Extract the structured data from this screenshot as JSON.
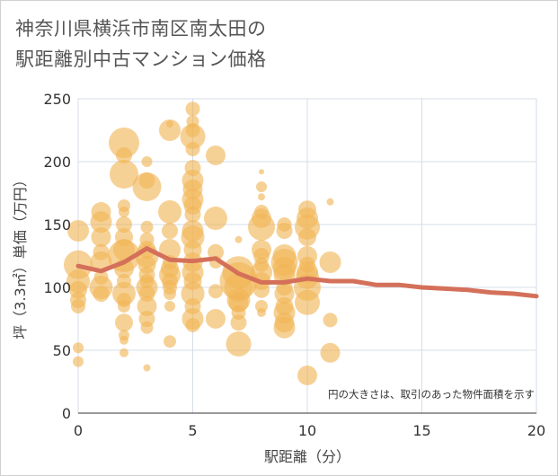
{
  "title_line1": "神奈川県横浜市南区南太田の",
  "title_line2": "駅距離別中古マンション価格",
  "note": "円の大きさは、取引のあった物件面積を示す",
  "colors": {
    "bubble": "#f0b455",
    "line": "#d4705a",
    "grid": "#d6dde8",
    "plot_bg": "#ffffff"
  },
  "chart_data": {
    "type": "scatter",
    "xlabel": "駅距離（分）",
    "ylabel": "坪（3.3㎡）単価（万円）",
    "xlim": [
      0,
      20
    ],
    "ylim": [
      0,
      250
    ],
    "xticks": [
      0,
      5,
      10,
      15,
      20
    ],
    "yticks": [
      0,
      50,
      100,
      150,
      200,
      250
    ],
    "grid": true,
    "series": [
      {
        "type": "bubble",
        "points": [
          {
            "x": 0,
            "y": 145,
            "s": 12
          },
          {
            "x": 0,
            "y": 118,
            "s": 16
          },
          {
            "x": 0,
            "y": 105,
            "s": 13
          },
          {
            "x": 0,
            "y": 98,
            "s": 10
          },
          {
            "x": 0,
            "y": 90,
            "s": 9
          },
          {
            "x": 0,
            "y": 85,
            "s": 8
          },
          {
            "x": 0,
            "y": 52,
            "s": 6
          },
          {
            "x": 0,
            "y": 41,
            "s": 6
          },
          {
            "x": 1,
            "y": 160,
            "s": 11
          },
          {
            "x": 1,
            "y": 152,
            "s": 12
          },
          {
            "x": 1,
            "y": 140,
            "s": 11
          },
          {
            "x": 1,
            "y": 128,
            "s": 9
          },
          {
            "x": 1,
            "y": 120,
            "s": 12
          },
          {
            "x": 1,
            "y": 108,
            "s": 8
          },
          {
            "x": 1,
            "y": 100,
            "s": 13
          },
          {
            "x": 1,
            "y": 95,
            "s": 9
          },
          {
            "x": 2,
            "y": 215,
            "s": 17
          },
          {
            "x": 2,
            "y": 205,
            "s": 9
          },
          {
            "x": 2,
            "y": 190,
            "s": 16
          },
          {
            "x": 2,
            "y": 165,
            "s": 7
          },
          {
            "x": 2,
            "y": 160,
            "s": 6
          },
          {
            "x": 2,
            "y": 150,
            "s": 9
          },
          {
            "x": 2,
            "y": 140,
            "s": 10
          },
          {
            "x": 2,
            "y": 130,
            "s": 12
          },
          {
            "x": 2,
            "y": 125,
            "s": 18
          },
          {
            "x": 2,
            "y": 115,
            "s": 11
          },
          {
            "x": 2,
            "y": 105,
            "s": 8
          },
          {
            "x": 2,
            "y": 95,
            "s": 13
          },
          {
            "x": 2,
            "y": 90,
            "s": 8
          },
          {
            "x": 2,
            "y": 85,
            "s": 7
          },
          {
            "x": 2,
            "y": 72,
            "s": 10
          },
          {
            "x": 2,
            "y": 62,
            "s": 6
          },
          {
            "x": 2,
            "y": 58,
            "s": 5
          },
          {
            "x": 2,
            "y": 48,
            "s": 5
          },
          {
            "x": 3,
            "y": 200,
            "s": 6
          },
          {
            "x": 3,
            "y": 185,
            "s": 9
          },
          {
            "x": 3,
            "y": 180,
            "s": 16
          },
          {
            "x": 3,
            "y": 148,
            "s": 7
          },
          {
            "x": 3,
            "y": 138,
            "s": 8
          },
          {
            "x": 3,
            "y": 130,
            "s": 10
          },
          {
            "x": 3,
            "y": 125,
            "s": 13
          },
          {
            "x": 3,
            "y": 118,
            "s": 10
          },
          {
            "x": 3,
            "y": 110,
            "s": 9
          },
          {
            "x": 3,
            "y": 105,
            "s": 8
          },
          {
            "x": 3,
            "y": 100,
            "s": 12
          },
          {
            "x": 3,
            "y": 95,
            "s": 9
          },
          {
            "x": 3,
            "y": 85,
            "s": 11
          },
          {
            "x": 3,
            "y": 75,
            "s": 9
          },
          {
            "x": 3,
            "y": 68,
            "s": 7
          },
          {
            "x": 3,
            "y": 36,
            "s": 4
          },
          {
            "x": 4,
            "y": 230,
            "s": 4
          },
          {
            "x": 4,
            "y": 225,
            "s": 12
          },
          {
            "x": 4,
            "y": 160,
            "s": 13
          },
          {
            "x": 4,
            "y": 145,
            "s": 9
          },
          {
            "x": 4,
            "y": 130,
            "s": 12
          },
          {
            "x": 4,
            "y": 120,
            "s": 8
          },
          {
            "x": 4,
            "y": 115,
            "s": 10
          },
          {
            "x": 4,
            "y": 110,
            "s": 12
          },
          {
            "x": 4,
            "y": 105,
            "s": 9
          },
          {
            "x": 4,
            "y": 100,
            "s": 8
          },
          {
            "x": 4,
            "y": 95,
            "s": 7
          },
          {
            "x": 4,
            "y": 85,
            "s": 6
          },
          {
            "x": 4,
            "y": 57,
            "s": 7
          },
          {
            "x": 5,
            "y": 242,
            "s": 8
          },
          {
            "x": 5,
            "y": 232,
            "s": 7
          },
          {
            "x": 5,
            "y": 225,
            "s": 8
          },
          {
            "x": 5,
            "y": 220,
            "s": 14
          },
          {
            "x": 5,
            "y": 210,
            "s": 8
          },
          {
            "x": 5,
            "y": 195,
            "s": 9
          },
          {
            "x": 5,
            "y": 185,
            "s": 12
          },
          {
            "x": 5,
            "y": 178,
            "s": 11
          },
          {
            "x": 5,
            "y": 170,
            "s": 12
          },
          {
            "x": 5,
            "y": 165,
            "s": 10
          },
          {
            "x": 5,
            "y": 158,
            "s": 9
          },
          {
            "x": 5,
            "y": 145,
            "s": 12
          },
          {
            "x": 5,
            "y": 140,
            "s": 13
          },
          {
            "x": 5,
            "y": 130,
            "s": 10
          },
          {
            "x": 5,
            "y": 120,
            "s": 11
          },
          {
            "x": 5,
            "y": 112,
            "s": 12
          },
          {
            "x": 5,
            "y": 105,
            "s": 10
          },
          {
            "x": 5,
            "y": 95,
            "s": 13
          },
          {
            "x": 5,
            "y": 85,
            "s": 9
          },
          {
            "x": 5,
            "y": 75,
            "s": 12
          },
          {
            "x": 5,
            "y": 70,
            "s": 8
          },
          {
            "x": 6,
            "y": 205,
            "s": 11
          },
          {
            "x": 6,
            "y": 155,
            "s": 13
          },
          {
            "x": 6,
            "y": 128,
            "s": 9
          },
          {
            "x": 6,
            "y": 120,
            "s": 7
          },
          {
            "x": 6,
            "y": 97,
            "s": 8
          },
          {
            "x": 6,
            "y": 75,
            "s": 11
          },
          {
            "x": 7,
            "y": 138,
            "s": 4
          },
          {
            "x": 7,
            "y": 112,
            "s": 18
          },
          {
            "x": 7,
            "y": 105,
            "s": 21
          },
          {
            "x": 7,
            "y": 100,
            "s": 16
          },
          {
            "x": 7,
            "y": 90,
            "s": 13
          },
          {
            "x": 7,
            "y": 88,
            "s": 11
          },
          {
            "x": 7,
            "y": 80,
            "s": 8
          },
          {
            "x": 7,
            "y": 72,
            "s": 9
          },
          {
            "x": 7,
            "y": 55,
            "s": 14
          },
          {
            "x": 8,
            "y": 192,
            "s": 3
          },
          {
            "x": 8,
            "y": 180,
            "s": 6
          },
          {
            "x": 8,
            "y": 172,
            "s": 4
          },
          {
            "x": 8,
            "y": 160,
            "s": 8
          },
          {
            "x": 8,
            "y": 155,
            "s": 11
          },
          {
            "x": 8,
            "y": 148,
            "s": 15
          },
          {
            "x": 8,
            "y": 130,
            "s": 11
          },
          {
            "x": 8,
            "y": 125,
            "s": 9
          },
          {
            "x": 8,
            "y": 118,
            "s": 8
          },
          {
            "x": 8,
            "y": 112,
            "s": 12
          },
          {
            "x": 8,
            "y": 105,
            "s": 10
          },
          {
            "x": 8,
            "y": 98,
            "s": 9
          },
          {
            "x": 8,
            "y": 85,
            "s": 7
          },
          {
            "x": 8,
            "y": 80,
            "s": 5
          },
          {
            "x": 9,
            "y": 150,
            "s": 8
          },
          {
            "x": 9,
            "y": 145,
            "s": 9
          },
          {
            "x": 9,
            "y": 125,
            "s": 13
          },
          {
            "x": 9,
            "y": 120,
            "s": 15
          },
          {
            "x": 9,
            "y": 115,
            "s": 13
          },
          {
            "x": 9,
            "y": 110,
            "s": 12
          },
          {
            "x": 9,
            "y": 100,
            "s": 9
          },
          {
            "x": 9,
            "y": 95,
            "s": 11
          },
          {
            "x": 9,
            "y": 85,
            "s": 10
          },
          {
            "x": 9,
            "y": 80,
            "s": 12
          },
          {
            "x": 9,
            "y": 72,
            "s": 11
          },
          {
            "x": 9,
            "y": 68,
            "s": 12
          },
          {
            "x": 10,
            "y": 162,
            "s": 10
          },
          {
            "x": 10,
            "y": 155,
            "s": 12
          },
          {
            "x": 10,
            "y": 148,
            "s": 14
          },
          {
            "x": 10,
            "y": 140,
            "s": 10
          },
          {
            "x": 10,
            "y": 125,
            "s": 11
          },
          {
            "x": 10,
            "y": 118,
            "s": 9
          },
          {
            "x": 10,
            "y": 112,
            "s": 12
          },
          {
            "x": 10,
            "y": 108,
            "s": 13
          },
          {
            "x": 10,
            "y": 100,
            "s": 15
          },
          {
            "x": 10,
            "y": 88,
            "s": 14
          },
          {
            "x": 10,
            "y": 30,
            "s": 11
          },
          {
            "x": 11,
            "y": 168,
            "s": 4
          },
          {
            "x": 11,
            "y": 120,
            "s": 12
          },
          {
            "x": 11,
            "y": 74,
            "s": 8
          },
          {
            "x": 11,
            "y": 48,
            "s": 11
          }
        ]
      },
      {
        "type": "line",
        "x": [
          0,
          1,
          2,
          3,
          4,
          5,
          6,
          7,
          8,
          9,
          10,
          11,
          12,
          13,
          14,
          15,
          16,
          17,
          18,
          19,
          20
        ],
        "y": [
          117,
          113,
          120,
          131,
          122,
          121,
          123,
          111,
          104,
          104,
          107,
          105,
          105,
          102,
          102,
          100,
          99,
          98,
          96,
          95,
          93
        ]
      }
    ]
  }
}
